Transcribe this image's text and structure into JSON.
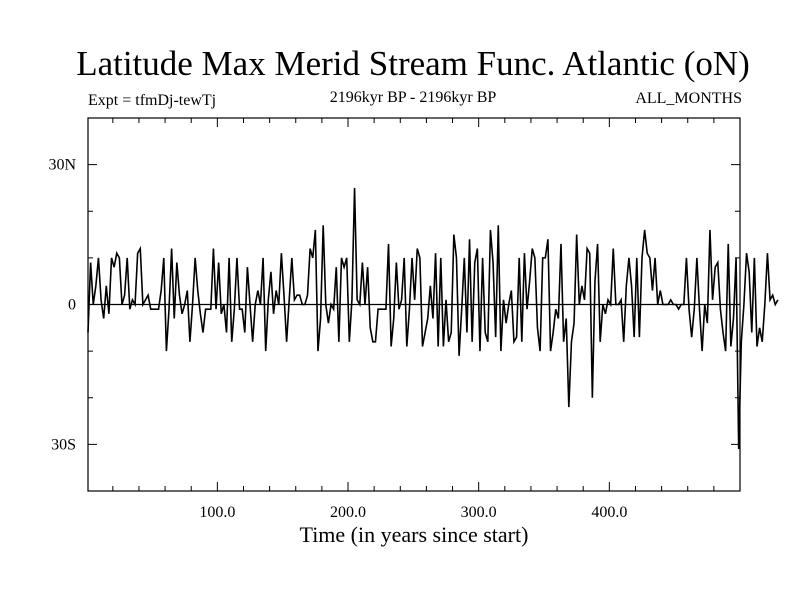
{
  "header": {
    "title": "Latitude Max Merid Stream Func. Atlantic (oN)",
    "experiment": "Expt = tfmDj-tewTj",
    "period": "2196kyr BP - 2196kyr BP",
    "months": "ALL_MONTHS"
  },
  "chart_data": {
    "type": "line",
    "title": "Latitude Max Merid Stream Func. Atlantic (oN)",
    "xlabel": "Time (in years since start)",
    "ylabel": "",
    "xlim": [
      1,
      500
    ],
    "ylim": [
      -40,
      40
    ],
    "x_ticks": [
      100,
      200,
      300,
      400
    ],
    "x_tick_labels": [
      "100.0",
      "200.0",
      "300.0",
      "400.0"
    ],
    "y_ticks": [
      -30,
      0,
      30
    ],
    "y_tick_labels": [
      "30S",
      "0",
      "30N"
    ],
    "grid": false,
    "series": [
      {
        "x_start": 1,
        "x_step": 2,
        "values": [
          -6,
          9,
          0,
          4,
          10,
          1,
          -3,
          4,
          -2,
          10,
          8,
          11,
          10,
          0,
          2,
          10,
          -1,
          1,
          0,
          11,
          12,
          0,
          1,
          2,
          -1,
          -1,
          -1,
          -1,
          3,
          10,
          -10,
          -1,
          12,
          -3,
          9,
          2,
          -2,
          0,
          3,
          -8,
          0,
          10,
          3,
          -2,
          -6,
          -1,
          -1,
          -1,
          12,
          -1,
          9,
          -2,
          0,
          -6,
          10,
          -8,
          -1,
          10,
          -1,
          -1,
          -6,
          8,
          0,
          -8,
          0,
          3,
          0,
          10,
          -10,
          1,
          7,
          -2,
          3,
          0,
          11,
          2,
          -8,
          1,
          10,
          1,
          2,
          2,
          0,
          0,
          2,
          12,
          10,
          16,
          -10,
          -3,
          17,
          0,
          -4,
          0,
          -1,
          8,
          -8,
          10,
          8,
          10,
          -8,
          1,
          25,
          1,
          0,
          9,
          0,
          8,
          -5,
          -8,
          -8,
          -1,
          -1,
          -1,
          -1,
          13,
          -9,
          -3,
          9,
          -1,
          1,
          10,
          -9,
          -1,
          10,
          1,
          12,
          10,
          -9,
          -6,
          -3,
          4,
          -3,
          11,
          -9,
          10,
          -9,
          1,
          -8,
          -6,
          15,
          10,
          -11,
          -1,
          10,
          -6,
          14,
          -8,
          9,
          12,
          -10,
          10,
          -6,
          -8,
          16,
          9,
          -7,
          17,
          -10,
          1,
          -4,
          0,
          3,
          -8,
          -7,
          10,
          -8,
          11,
          -1,
          5,
          12,
          10,
          -5,
          -10,
          10,
          10,
          14,
          -10,
          -6,
          -1,
          -3,
          13,
          -8,
          -3,
          -22,
          -8,
          -4,
          15,
          0,
          4,
          1,
          12,
          11,
          -20,
          5,
          13,
          -8,
          0,
          -2,
          1,
          0,
          12,
          0,
          0,
          1,
          -8,
          4,
          10,
          4,
          -7,
          10,
          -7,
          10,
          16,
          11,
          10,
          3,
          10,
          0,
          3,
          0,
          0,
          0,
          1,
          0,
          0,
          -1,
          0,
          0,
          10,
          -1,
          -7,
          -1,
          10,
          -1,
          -10,
          0,
          -4,
          16,
          1,
          8,
          9,
          -1,
          -6,
          -10,
          13,
          -9,
          -3,
          10,
          -31,
          -8,
          0,
          11,
          7,
          -6,
          10,
          -9,
          -5,
          -8,
          0,
          11,
          1,
          2,
          0,
          1
        ]
      }
    ]
  }
}
